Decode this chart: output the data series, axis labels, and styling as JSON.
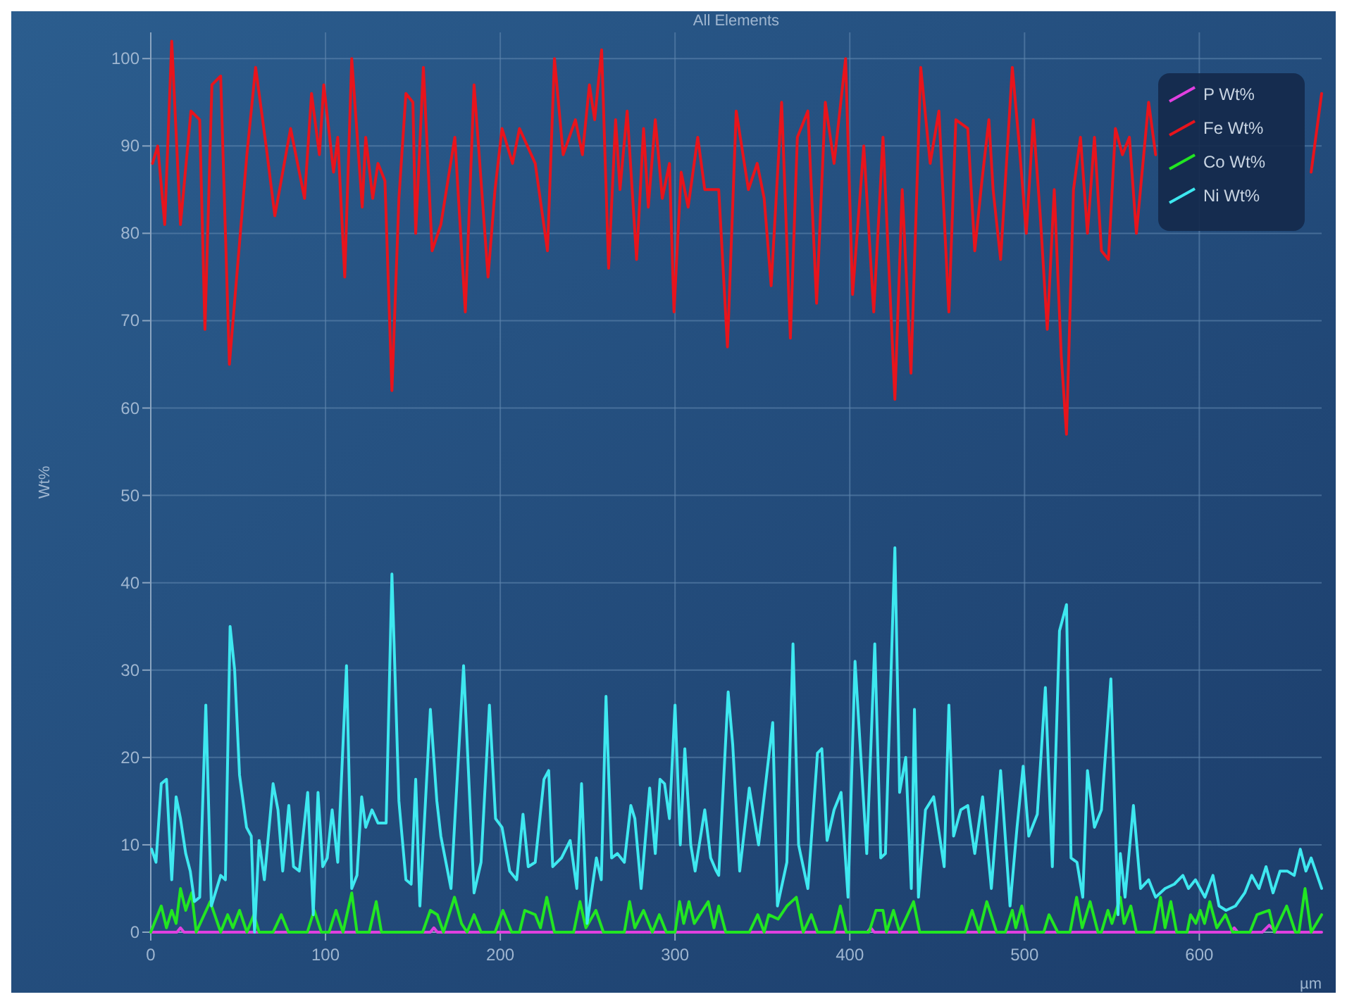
{
  "chart_data": {
    "type": "line",
    "title": "All Elements",
    "xlabel": "µm",
    "ylabel": "Wt%",
    "xlim": [
      0,
      670
    ],
    "ylim": [
      0,
      103
    ],
    "xticks": [
      0,
      100,
      200,
      300,
      400,
      500,
      600
    ],
    "yticks": [
      0,
      10,
      20,
      30,
      40,
      50,
      60,
      70,
      80,
      90,
      100
    ],
    "grid": true,
    "legend": "top right",
    "line_style": "solid",
    "series": [
      {
        "name": "P Wt%",
        "color": "#e040e0",
        "x": [
          0,
          15,
          17,
          19,
          60,
          160,
          162,
          164,
          400,
          410,
          412,
          414,
          600,
          618,
          620,
          622,
          636,
          640,
          644,
          670
        ],
        "values": [
          0,
          0,
          0.5,
          0,
          0,
          0,
          0.5,
          0,
          0,
          0,
          0.5,
          0,
          0,
          0,
          0.5,
          0,
          0,
          0.8,
          0,
          0
        ]
      },
      {
        "name": "Fe Wt%",
        "color": "#e8141c",
        "x": [
          1,
          4,
          8,
          12,
          17,
          23,
          28,
          31,
          35,
          40,
          45,
          55,
          60,
          66,
          71,
          80,
          88,
          92,
          96.5,
          99,
          104.6,
          107,
          111,
          115,
          121,
          123,
          127,
          130,
          134,
          138,
          142,
          146,
          150,
          151.6,
          156,
          161,
          166,
          174,
          180,
          185,
          193,
          197,
          201,
          207,
          211,
          220,
          227,
          231,
          236,
          243,
          247,
          251,
          254,
          258,
          262,
          266,
          268.5,
          272.6,
          278,
          282,
          284.7,
          288.7,
          292.7,
          296.8,
          299.4,
          303.5,
          307.5,
          313,
          317,
          325,
          330,
          335,
          342,
          347,
          351,
          355,
          361,
          366,
          370,
          376,
          381,
          386,
          391,
          397.6,
          401.6,
          408,
          413.7,
          419,
          425.8,
          430,
          435,
          440.6,
          446,
          451,
          456.7,
          460.7,
          467.5,
          471.5,
          475.6,
          479.6,
          482,
          486.3,
          493,
          497,
          501,
          505,
          509,
          513,
          517,
          521,
          524,
          528,
          532,
          536,
          540,
          544,
          548,
          552,
          556,
          560,
          564,
          571,
          575,
          578,
          660,
          664,
          670
        ],
        "values": [
          88,
          90,
          81,
          102,
          81,
          94,
          93,
          69,
          97,
          98,
          65,
          89,
          99,
          90,
          82,
          92,
          84,
          96,
          89,
          97,
          87,
          91,
          75,
          100,
          83,
          91,
          84,
          88,
          86,
          62,
          84,
          96,
          95,
          80,
          99,
          78,
          81,
          91,
          71,
          97,
          75,
          85,
          92,
          88,
          92,
          88,
          78,
          100,
          89,
          93,
          89,
          97,
          93,
          101,
          76,
          93,
          85,
          94,
          77,
          92,
          83,
          93,
          84,
          88,
          71,
          87,
          83,
          91,
          85,
          85,
          67,
          94,
          85,
          88,
          84,
          74,
          95,
          68,
          91,
          94,
          72,
          95,
          88,
          100,
          73,
          90,
          71,
          91,
          61,
          85,
          64,
          99,
          88,
          94,
          71,
          93,
          92,
          78,
          86,
          93,
          85,
          77,
          99,
          90,
          80,
          93,
          82,
          69,
          85,
          66,
          57,
          85,
          91,
          80,
          91,
          78,
          77,
          92,
          89,
          91,
          80,
          95,
          89,
          null,
          null,
          87,
          96
        ]
      },
      {
        "name": "Co Wt%",
        "color": "#22e622",
        "x": [
          0,
          6,
          9,
          12,
          14.5,
          17,
          20,
          23.4,
          26,
          34,
          40,
          44,
          47,
          50.8,
          55,
          59,
          62,
          70,
          74.7,
          78.8,
          89.6,
          93.5,
          97.6,
          102,
          106,
          110,
          115,
          118,
          125,
          129,
          132,
          155.6,
          160,
          164,
          167.5,
          173.8,
          177.8,
          181,
          185,
          189,
          197,
          201.5,
          206.5,
          211,
          214,
          220,
          223,
          226.6,
          231,
          242,
          245.6,
          249,
          254.7,
          259,
          271,
          274,
          277,
          282,
          287,
          291,
          295,
          300,
          302.6,
          305,
          308,
          311,
          319,
          322.3,
          325,
          329,
          342.5,
          347.3,
          351,
          353.6,
          359,
          364,
          369.4,
          373.4,
          378,
          381.5,
          391,
          394.6,
          398,
          411,
          415,
          419,
          421,
          425,
          428.5,
          436.5,
          440,
          466,
          470,
          474,
          478.4,
          484,
          489,
          493,
          495,
          498.4,
          502,
          511,
          514,
          519,
          526,
          529.8,
          533,
          537.5,
          542,
          544,
          547.7,
          550,
          554.8,
          557,
          560.8,
          564,
          574,
          577.8,
          580.4,
          583.7,
          587,
          593,
          595,
          598,
          600.5,
          603,
          606,
          610,
          615,
          619,
          629,
          633,
          640,
          643,
          650,
          655,
          657,
          660.5,
          664,
          670
        ],
        "values": [
          0,
          3,
          0.5,
          2.5,
          1,
          5,
          2.5,
          4.5,
          0,
          3.5,
          0,
          2,
          0.5,
          2.5,
          0,
          2,
          0,
          0,
          2,
          0,
          0,
          2.5,
          0,
          0,
          2.5,
          0,
          4.5,
          0,
          0,
          3.5,
          0,
          0,
          2.5,
          2,
          0,
          4,
          1,
          0,
          2,
          0,
          0,
          2.5,
          0,
          0,
          2.5,
          2,
          0.5,
          4,
          0,
          0,
          3.5,
          0.5,
          2.5,
          0,
          0,
          3.5,
          0.5,
          2.5,
          0,
          2,
          0,
          0,
          3.5,
          1,
          3.5,
          1,
          3.5,
          0.5,
          3,
          0,
          0,
          2,
          0,
          2,
          1.5,
          3,
          4,
          0,
          2,
          0,
          0,
          3,
          0,
          0,
          2.5,
          2.5,
          0,
          2.5,
          0,
          3.5,
          0,
          0,
          2.5,
          0,
          3.5,
          0,
          0,
          2.5,
          0.5,
          3,
          0,
          0,
          2,
          0,
          0,
          4,
          0.5,
          3.5,
          0,
          0,
          2.5,
          1,
          4,
          1,
          3,
          0,
          0,
          4,
          0.5,
          3.5,
          0,
          0,
          2,
          1,
          2.5,
          1,
          3.5,
          0.5,
          2,
          0,
          0,
          2,
          2.5,
          0,
          3,
          0,
          0,
          5,
          0,
          2
        ]
      },
      {
        "name": "Ni Wt%",
        "color": "#3ee8f0",
        "x": [
          0.5,
          3,
          6,
          9,
          12,
          14.5,
          17,
          20,
          22.6,
          25,
          28,
          31.5,
          34.7,
          40,
          42.7,
          45.4,
          48,
          50.8,
          54.8,
          57.5,
          59.4,
          62,
          65,
          70,
          72.8,
          75.5,
          79,
          81.7,
          85,
          89.8,
          93,
          95.7,
          98.4,
          101,
          103.8,
          107,
          112,
          115,
          118,
          120.7,
          123,
          126.6,
          130,
          134.7,
          138,
          142,
          146,
          149,
          151.6,
          154,
          160,
          163.7,
          166,
          171.8,
          179,
          185,
          189,
          193.8,
          197.3,
          201,
          205.4,
          209.4,
          213,
          216,
          220,
          225,
          227.7,
          230,
          235,
          240,
          243.8,
          246.5,
          249.7,
          255,
          257.8,
          260.5,
          263.7,
          267,
          271,
          274.7,
          277,
          280.6,
          285.5,
          288.7,
          291.4,
          294,
          296.8,
          300,
          303,
          305.6,
          309,
          311.5,
          317,
          320.4,
          323.6,
          325,
          330.4,
          333,
          337,
          342.5,
          347.8,
          355.9,
          358.6,
          364,
          367.5,
          370.7,
          376,
          381.5,
          384,
          387,
          391,
          395,
          399,
          403,
          409.7,
          414.3,
          417.7,
          420.4,
          425.8,
          428.5,
          432,
          435.2,
          437,
          439.3,
          443.3,
          448,
          454,
          456.7,
          459.4,
          463.5,
          467.5,
          471.5,
          476,
          481,
          486.3,
          491.7,
          495.7,
          499.2,
          502.4,
          507.3,
          511.9,
          515.9,
          520,
          524,
          526.6,
          530,
          533.3,
          536,
          540,
          544,
          549.4,
          553.5,
          554.8,
          557.5,
          562.3,
          566.4,
          571,
          575,
          580.4,
          585.7,
          590.6,
          593.8,
          597.8,
          603.2,
          607.8,
          611.3,
          615.3,
          620.7,
          626,
          630,
          634.2,
          638.2,
          642.2,
          646.2,
          650.3,
          654.3,
          657.8,
          661,
          664,
          670
        ],
        "values": [
          9.5,
          8,
          17,
          17.5,
          6,
          15.5,
          13,
          9,
          7,
          3.5,
          4,
          26,
          3,
          6.5,
          6,
          35,
          30,
          18,
          12,
          11,
          0,
          10.5,
          6,
          17,
          14,
          7,
          14.5,
          7.5,
          7,
          16,
          2,
          16,
          7.5,
          8.5,
          14,
          8,
          30.5,
          5,
          6.5,
          15.5,
          12,
          14,
          12.5,
          12.5,
          41,
          15,
          6,
          5.5,
          17.5,
          3,
          25.5,
          15,
          11,
          5,
          30.5,
          4.5,
          8,
          26,
          13,
          12,
          7,
          6,
          13.5,
          7.5,
          8,
          17.5,
          18.5,
          7.5,
          8.5,
          10.5,
          5,
          17,
          1,
          8.5,
          6,
          27,
          8.5,
          9,
          8,
          14.5,
          13,
          5,
          16.5,
          9,
          17.5,
          17,
          13,
          26,
          10,
          21,
          10,
          7,
          14,
          8.5,
          7,
          6.5,
          27.5,
          21.5,
          7,
          16.5,
          10,
          24,
          3,
          8,
          33,
          10,
          5,
          20.5,
          21,
          10.5,
          14,
          16,
          4,
          31,
          9,
          33,
          8.5,
          9,
          44,
          16,
          20,
          5,
          25.5,
          4,
          14,
          15.5,
          7.5,
          26,
          11,
          14,
          14.5,
          9,
          15.5,
          5,
          18.5,
          3,
          12,
          19,
          11,
          13.5,
          28,
          7.5,
          34.5,
          37.5,
          8.5,
          8,
          4,
          18.5,
          12,
          14,
          29,
          2,
          9,
          4,
          14.5,
          5,
          6,
          4,
          5,
          5.5,
          6.5,
          5,
          6,
          4,
          6.5,
          3,
          2.5,
          3,
          4.5,
          6.5,
          5,
          7.5,
          4.5,
          7,
          7,
          6.5,
          9.5,
          7,
          8.5,
          5
        ]
      }
    ]
  }
}
